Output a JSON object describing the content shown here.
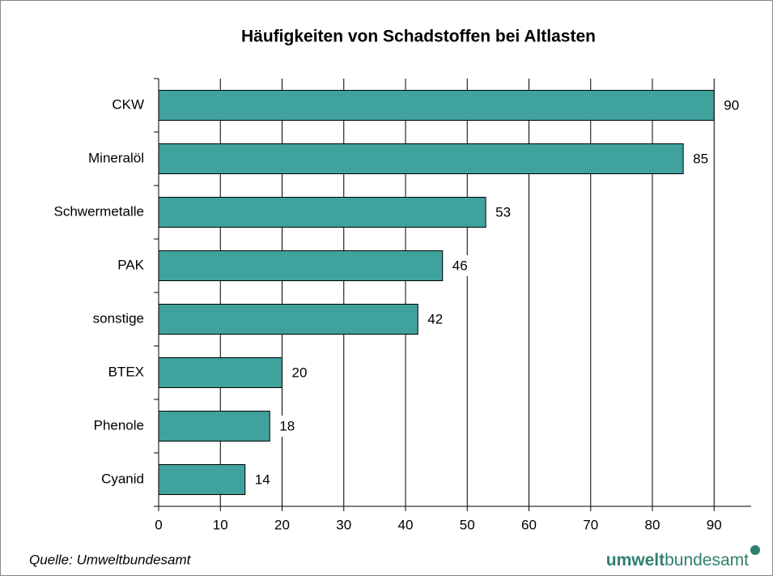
{
  "chart_data": {
    "type": "bar",
    "orientation": "horizontal",
    "title": "Häufigkeiten von Schadstoffen bei Altlasten",
    "categories": [
      "CKW",
      "Mineralöl",
      "Schwermetalle",
      "PAK",
      "sonstige",
      "BTEX",
      "Phenole",
      "Cyanid"
    ],
    "values": [
      90,
      85,
      53,
      46,
      42,
      20,
      18,
      14
    ],
    "color": "#40a29c",
    "xlim": [
      0,
      96
    ],
    "xticks": [
      0,
      10,
      20,
      30,
      40,
      50,
      60,
      70,
      80,
      90
    ],
    "grid": true
  },
  "footer": {
    "source": "Quelle: Umweltbundesamt",
    "logo_bold": "umwelt",
    "logo_regular": "bundesamt"
  }
}
